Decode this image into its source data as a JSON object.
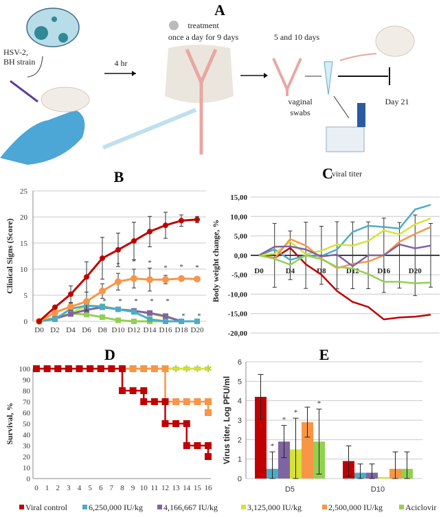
{
  "panel_a": {
    "label": "A",
    "virus_line1": "HSV-2,",
    "virus_line2": "BH strain",
    "delay": "4 hr",
    "treatment_line1": "treatment",
    "treatment_line2": "once a day for 9 days",
    "sampling": "5 and 10 days",
    "swabs_line1": "vaginal",
    "swabs_line2": "swabs",
    "endpoint": "Day 21",
    "titer": "viral titer"
  },
  "colors": {
    "Viral control": "#c00000",
    "6,250,000 IU/kg": "#4bacc6",
    "4,166,667 IU/kg": "#8064a2",
    "3,125,000 IU/kg": "#d7e236",
    "2,500,000 IU/kg": "#f79646",
    "Aciclovir": "#92d050"
  },
  "legend": [
    "Viral control",
    "6,250,000 IU/kg",
    "4,166,667 IU/kg",
    "3,125,000 IU/kg",
    "2,500,000 IU/kg",
    "Aciclovir"
  ],
  "chart_data": [
    {
      "panel": "B",
      "type": "line",
      "title": "B",
      "ylabel": "Clinical Signs (Score)",
      "ylim": [
        0,
        25
      ],
      "yticks": [
        0,
        5,
        10,
        15,
        20,
        25
      ],
      "grid": true,
      "categories": [
        "D0",
        "D2",
        "D4",
        "D6",
        "D8",
        "D10",
        "D12",
        "D14",
        "D16",
        "D18",
        "D20"
      ],
      "series": [
        {
          "name": "Viral control",
          "values": [
            0,
            2.7,
            5.2,
            8.5,
            12.1,
            13.7,
            15.4,
            17.2,
            18.4,
            19.3,
            19.5
          ],
          "errors": [
            0,
            0.3,
            1.6,
            2.9,
            4.0,
            3.2,
            3.6,
            2.9,
            2.5,
            1.1,
            0.6
          ]
        },
        {
          "name": "2,500,000 IU/kg",
          "values": [
            0,
            1.7,
            2.8,
            3.8,
            5.8,
            7.6,
            8.2,
            8.0,
            8.0,
            8.2,
            8.1
          ],
          "errors": [
            0,
            0.4,
            0.7,
            1.8,
            1.4,
            1.6,
            1.8,
            2.2,
            0.8,
            0.3,
            0.3
          ]
        },
        {
          "name": "6,250,000 IU/kg",
          "values": [
            0,
            0.4,
            2.4,
            3.0,
            2.8,
            2.3,
            1.8,
            0.4,
            0,
            0,
            0
          ]
        },
        {
          "name": "4,166,667 IU/kg",
          "values": [
            0,
            0.5,
            1.4,
            2.2,
            2.7,
            2.3,
            2.0,
            1.6,
            1.0,
            0,
            0
          ]
        },
        {
          "name": "3,125,000 IU/kg",
          "values": [
            0,
            0.8,
            1.5,
            3.0,
            2.9,
            2.3,
            2.0,
            1.5,
            0.8,
            0,
            0
          ]
        },
        {
          "name": "Aciclovir",
          "values": [
            0,
            0.5,
            1.5,
            1.3,
            0.8,
            0.2,
            0,
            0,
            0,
            0,
            0
          ]
        }
      ],
      "annotations": "*"
    },
    {
      "panel": "C",
      "type": "line",
      "title": "C",
      "ylabel": "Body weight change, %",
      "ylim": [
        -20,
        15
      ],
      "yticks": [
        "-20,00",
        "-15,00",
        "-10,00",
        "-5,00",
        "0,00",
        "5,00",
        "10,00",
        "15,00"
      ],
      "grid": true,
      "x": [
        "D0",
        "D2",
        "D4",
        "D6",
        "D8",
        "D10",
        "D12",
        "D14",
        "D16",
        "D18",
        "D20",
        "D22"
      ],
      "xticklabels": [
        "D0",
        "D4",
        "D8",
        "D12",
        "D16",
        "D20"
      ],
      "series": [
        {
          "name": "Viral control",
          "values": [
            0,
            -0.7,
            1.9,
            -2.3,
            -5.0,
            -9.2,
            -12.0,
            -13.3,
            -16.5,
            -16.0,
            -15.8,
            -15.3
          ]
        },
        {
          "name": "6,250,000 IU/kg",
          "values": [
            0,
            1.5,
            -1.2,
            0,
            -0.2,
            1.5,
            6.0,
            7.6,
            7.3,
            6.9,
            11.8,
            13.0
          ]
        },
        {
          "name": "3,125,000 IU/kg",
          "values": [
            0,
            0.4,
            3.5,
            0.3,
            1.2,
            2.8,
            2.5,
            3.7,
            6.4,
            5.4,
            8.0,
            9.5
          ]
        },
        {
          "name": "2,500,000 IU/kg",
          "values": [
            0,
            -0.8,
            4.2,
            2.5,
            -0.8,
            -3.3,
            -2.2,
            -1.6,
            0,
            3.5,
            5.5,
            7.3
          ]
        },
        {
          "name": "4,166,667 IU/kg",
          "values": [
            0,
            2.2,
            2.3,
            1.5,
            -0.3,
            0.2,
            -2.8,
            0,
            0,
            2.8,
            1.8,
            2.5
          ]
        },
        {
          "name": "Aciclovir",
          "values": [
            0,
            -0.9,
            -2.4,
            0,
            -1.0,
            -3.0,
            -3.4,
            -4.8,
            -6.8,
            -6.8,
            -7.2,
            -7.0
          ]
        }
      ]
    },
    {
      "panel": "D",
      "type": "line",
      "title": "D",
      "ylabel": "Survival, %",
      "ylim": [
        0,
        100
      ],
      "yticks": [
        0,
        10,
        20,
        30,
        40,
        50,
        60,
        70,
        80,
        90,
        100
      ],
      "xticks": [
        0,
        1,
        2,
        3,
        4,
        5,
        6,
        7,
        8,
        9,
        10,
        11,
        12,
        13,
        14,
        15,
        16
      ],
      "series": [
        {
          "name": "Aciclovir",
          "steps": [
            [
              0,
              100
            ],
            [
              16,
              100
            ]
          ]
        },
        {
          "name": "3,125,000 IU/kg",
          "steps": [
            [
              0,
              100
            ],
            [
              16,
              100
            ]
          ]
        },
        {
          "name": "2,500,000 IU/kg",
          "steps": [
            [
              0,
              100
            ],
            [
              1,
              100
            ],
            [
              2,
              100
            ],
            [
              3,
              100
            ],
            [
              4,
              100
            ],
            [
              5,
              100
            ],
            [
              6,
              100
            ],
            [
              7,
              100
            ],
            [
              8,
              100
            ],
            [
              9,
              100
            ],
            [
              10,
              100
            ],
            [
              11,
              100
            ],
            [
              12,
              100
            ],
            [
              12,
              70
            ],
            [
              13,
              70
            ],
            [
              14,
              70
            ],
            [
              15,
              70
            ],
            [
              16,
              70
            ],
            [
              16,
              60
            ]
          ]
        },
        {
          "name": "Viral control",
          "steps": [
            [
              0,
              100
            ],
            [
              1,
              100
            ],
            [
              2,
              100
            ],
            [
              3,
              100
            ],
            [
              4,
              100
            ],
            [
              5,
              100
            ],
            [
              6,
              100
            ],
            [
              7,
              100
            ],
            [
              8,
              100
            ],
            [
              8,
              80
            ],
            [
              9,
              80
            ],
            [
              10,
              80
            ],
            [
              10,
              70
            ],
            [
              11,
              70
            ],
            [
              12,
              70
            ],
            [
              12,
              50
            ],
            [
              13,
              50
            ],
            [
              14,
              50
            ],
            [
              14,
              30
            ],
            [
              15,
              30
            ],
            [
              16,
              30
            ],
            [
              16,
              20
            ]
          ]
        }
      ]
    },
    {
      "panel": "E",
      "type": "bar",
      "title": "E",
      "ylabel": "Virus titer, Log PFU/ml",
      "ylim": [
        0,
        6
      ],
      "yticks": [
        0,
        1,
        2,
        3,
        4,
        5,
        6
      ],
      "categories": [
        "D5",
        "D10"
      ],
      "series": [
        {
          "name": "Viral control",
          "values": [
            4.2,
            0.9
          ],
          "errors": [
            1.15,
            0.78
          ],
          "sig": [
            false,
            false
          ]
        },
        {
          "name": "6,250,000 IU/kg",
          "values": [
            0.5,
            0.3
          ],
          "errors": [
            0.87,
            0.45
          ],
          "sig": [
            true,
            false
          ]
        },
        {
          "name": "4,166,667 IU/kg",
          "values": [
            1.9,
            0.3
          ],
          "errors": [
            0.83,
            0.45
          ],
          "sig": [
            true,
            false
          ]
        },
        {
          "name": "3,125,000 IU/kg",
          "values": [
            1.5,
            0.08
          ],
          "errors": [
            1.6,
            0
          ],
          "sig": [
            true,
            false
          ]
        },
        {
          "name": "2,500,000 IU/kg",
          "values": [
            2.9,
            0.5
          ],
          "errors": [
            0.77,
            0.87
          ],
          "sig": [
            false,
            false
          ]
        },
        {
          "name": "Aciclovir",
          "values": [
            1.9,
            0.5
          ],
          "errors": [
            1.67,
            0.87
          ],
          "sig": [
            true,
            false
          ]
        }
      ]
    }
  ]
}
